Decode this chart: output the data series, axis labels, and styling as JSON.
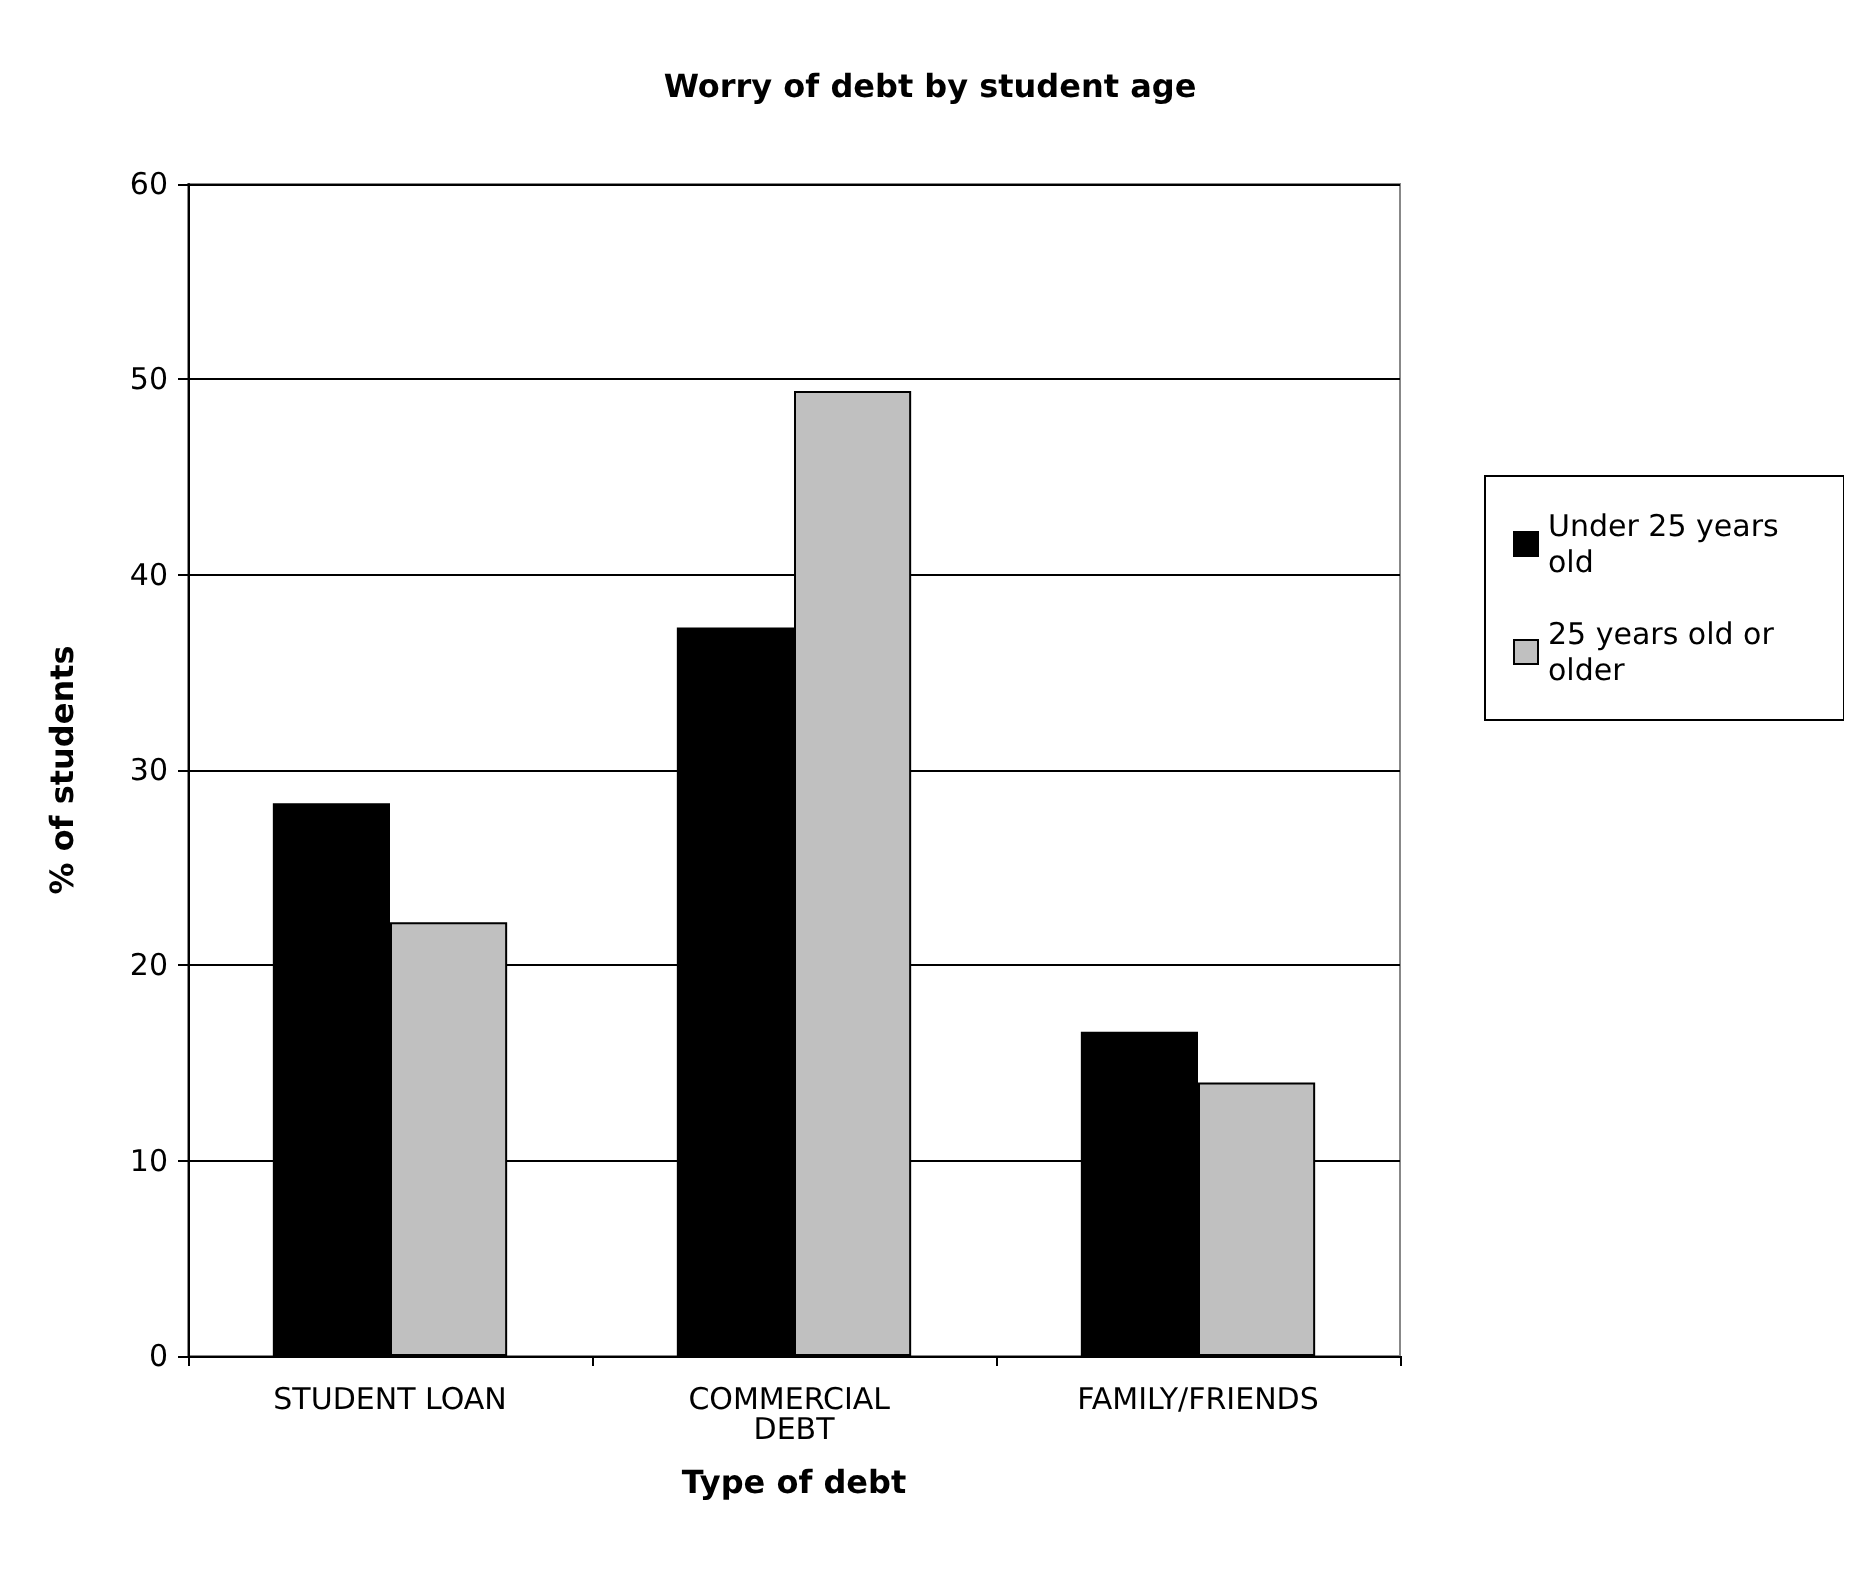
{
  "chart_data": {
    "type": "bar",
    "title": "Worry of debt by student age",
    "xlabel": "Type of debt",
    "ylabel": "% of students",
    "categories": [
      "STUDENT LOAN",
      "COMMERCIAL DEBT",
      "FAMILY/FRIENDS"
    ],
    "series": [
      {
        "name": "Under 25 years old",
        "color": "#000000",
        "values": [
          28.3,
          37.3,
          16.6
        ]
      },
      {
        "name": "25 years old or older",
        "color": "#c0c0c0",
        "values": [
          22.2,
          49.4,
          14.0
        ]
      }
    ],
    "ylim": [
      0,
      60
    ],
    "yticks": [
      0,
      10,
      20,
      30,
      40,
      50,
      60
    ],
    "grid": "y",
    "legend": "right"
  }
}
